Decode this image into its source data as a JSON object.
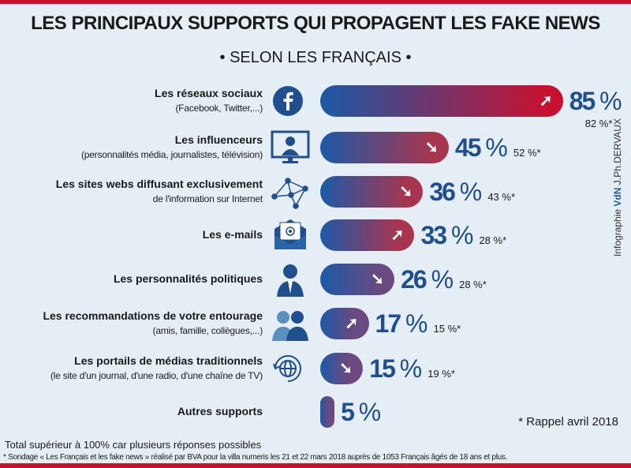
{
  "title": "LES PRINCIPAUX SUPPORTS QUI PROPAGENT LES FAKE NEWS",
  "subtitle": "• SELON LES FRANÇAIS •",
  "colors": {
    "bar_start": "#1b5aa8",
    "bar_end": "#c8102e",
    "value_text": "#1f4f8f",
    "background": "#e4eef4"
  },
  "chart_data": {
    "type": "bar",
    "orientation": "horizontal",
    "title": "LES PRINCIPAUX SUPPORTS QUI PROPAGENT LES FAKE NEWS",
    "subtitle": "• SELON LES FRANÇAIS •",
    "unit": "%",
    "rows": [
      {
        "label": "Les réseaux sociaux",
        "sub": "(Facebook, Twitter,...)",
        "icon": "facebook-icon",
        "value": 85,
        "previous": "82 %*",
        "trend": "up"
      },
      {
        "label": "Les influenceurs",
        "sub": "(personnalités média, journalistes, télévision)",
        "icon": "tv-presenter-icon",
        "value": 45,
        "previous": "52 %*",
        "trend": "down"
      },
      {
        "label": "Les sites webs diffusant exclusivement",
        "sub": "de l'information sur Internet",
        "icon": "network-icon",
        "value": 36,
        "previous": "43 %*",
        "trend": "down"
      },
      {
        "label": "Les e-mails",
        "sub": "",
        "icon": "email-icon",
        "value": 33,
        "previous": "28 %*",
        "trend": "up"
      },
      {
        "label": "Les personnalités politiques",
        "sub": "",
        "icon": "politician-icon",
        "value": 26,
        "previous": "28 %*",
        "trend": "down"
      },
      {
        "label": "Les recommandations de votre entourage",
        "sub": "(amis, famille, collègues,...)",
        "icon": "people-icon",
        "value": 17,
        "previous": "15 %*",
        "trend": "up"
      },
      {
        "label": "Les portails de médias traditionnels",
        "sub": "(le site d'un journal, d'une radio, d'une chaîne de TV)",
        "icon": "globe-icon",
        "value": 15,
        "previous": "19 %*",
        "trend": "down"
      },
      {
        "label": "Autres supports",
        "sub": "",
        "icon": "",
        "value": 5,
        "previous": "",
        "trend": ""
      }
    ]
  },
  "credit": {
    "prefix": "Infographie",
    "logo": "VdN",
    "author": "J.Ph.DERVAUX"
  },
  "rappel": "* Rappel avril 2018",
  "note": "Total supérieur à 100% car plusieurs réponses possibles",
  "source": "* Sondage « Les Français et les fake news »  réalisé par BVA pour la villa numeris les 21 et 22 mars 2018 auprès de 1053 Français âgés de 18 ans et plus."
}
